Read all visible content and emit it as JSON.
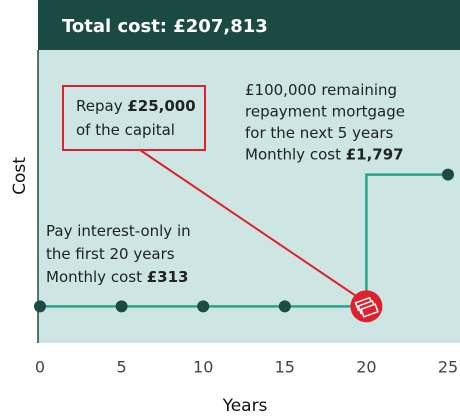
{
  "chart_data": {
    "type": "line",
    "title": "Total cost: £207,813",
    "ylabel": "Cost",
    "xlabel": "Years",
    "xlim": [
      0,
      25
    ],
    "xticks": [
      0,
      5,
      10,
      15,
      20,
      25
    ],
    "ylim": [
      -100,
      3200
    ],
    "series": [
      {
        "color": "#2aa58c",
        "x": [
          0,
          5,
          10,
          15,
          20,
          20,
          25
        ],
        "values": [
          313,
          313,
          313,
          313,
          313,
          1797,
          1797
        ],
        "markers": [
          "dot",
          "dot",
          "dot",
          "dot",
          "icon",
          null,
          "dot"
        ]
      }
    ],
    "annotations": [
      {
        "lines": [
          [
            {
              "text": "£100,000 remaining"
            }
          ],
          [
            {
              "text": "repayment mortgage"
            }
          ],
          [
            {
              "text": "for the next 5 years"
            }
          ],
          [
            {
              "text": "Monthly cost "
            },
            {
              "text": "£1,797",
              "bold": true
            }
          ]
        ]
      },
      {
        "lines": [
          [
            {
              "text": "Repay "
            },
            {
              "text": "£25,000",
              "bold": true
            }
          ],
          [
            {
              "text": "of the capital"
            }
          ]
        ]
      },
      {
        "lines": [
          [
            {
              "text": "Pay interest-only in"
            }
          ],
          [
            {
              "text": "the first 20 years"
            }
          ],
          [
            {
              "text": "Monthly cost "
            },
            {
              "text": "£313",
              "bold": true
            }
          ]
        ]
      }
    ]
  }
}
